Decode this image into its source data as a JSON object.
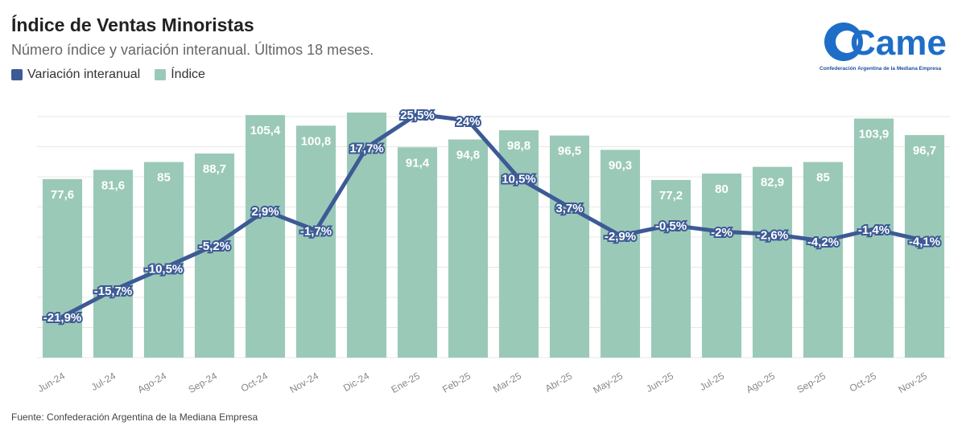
{
  "title": "Índice de Ventas Minoristas",
  "subtitle": "Número índice y variación interanual. Últimos 18 meses.",
  "legend": {
    "line_label": "Variación interanual",
    "bar_label": "Índice",
    "line_color": "#3d5a95",
    "bar_color": "#9bc9b8"
  },
  "logo": {
    "text": "Came",
    "caption": "Confederación Argentina de la Mediana Empresa",
    "color": "#1e6ec8"
  },
  "source": "Fuente: Confederación Argentina de la Mediana Empresa",
  "chart_data": {
    "type": "bar+line",
    "categories": [
      "Jun-24",
      "Jul-24",
      "Ago-24",
      "Sep-24",
      "Oct-24",
      "Nov-24",
      "Dic-24",
      "Ene-25",
      "Feb-25",
      "Mar-25",
      "Abr-25",
      "May-25",
      "Jun-25",
      "Jul-25",
      "Ago-25",
      "Sep-25",
      "Oct-25",
      "Nov-25"
    ],
    "series": [
      {
        "name": "Índice",
        "type": "bar",
        "values": [
          77.6,
          81.6,
          85,
          88.7,
          105.4,
          100.8,
          106.5,
          91.4,
          94.8,
          98.8,
          96.5,
          90.3,
          77.2,
          80,
          82.9,
          85,
          103.9,
          96.7
        ],
        "labels": [
          "77,6",
          "81,6",
          "85",
          "88,7",
          "105,4",
          "100,8",
          "",
          "91,4",
          "94,8",
          "98,8",
          "96,5",
          "90,3",
          "77,2",
          "80",
          "82,9",
          "85",
          "103,9",
          "96,7"
        ]
      },
      {
        "name": "Variación interanual",
        "type": "line",
        "values": [
          -21.9,
          -15.7,
          -10.5,
          -5.2,
          2.9,
          -1.7,
          17.7,
          25.5,
          24,
          10.5,
          3.7,
          -2.9,
          -0.5,
          -2,
          -2.6,
          -4.2,
          -1.4,
          -4.1
        ],
        "labels": [
          "-21,9%",
          "-15,7%",
          "-10,5%",
          "-5,2%",
          "2,9%",
          "-1,7%",
          "17,7%",
          "25,5%",
          "24%",
          "10,5%",
          "3,7%",
          "-2,9%",
          "-0,5%",
          "-2%",
          "-2,6%",
          "-4,2%",
          "-1,4%",
          "-4,1%"
        ]
      }
    ],
    "grid": true
  }
}
